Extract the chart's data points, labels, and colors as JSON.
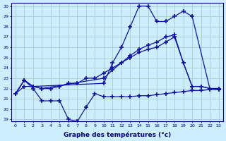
{
  "title": "Graphe des températures (°c)",
  "bg_color": "#cceeff",
  "grid_color": "#aacccc",
  "line_color": "#1111aa",
  "ylim": [
    19,
    30
  ],
  "yticks": [
    19,
    20,
    21,
    22,
    23,
    24,
    25,
    26,
    27,
    28,
    29,
    30
  ],
  "x_labels": [
    "0",
    "1",
    "2",
    "3",
    "4",
    "5",
    "6",
    "7",
    "8",
    "9",
    "10",
    "11",
    "12",
    "13",
    "14",
    "15",
    "16",
    "17",
    "18",
    "19",
    "20",
    "21",
    "22",
    "23"
  ],
  "line1_x": [
    0,
    1,
    2,
    3,
    4,
    5,
    6,
    7,
    8,
    9,
    10,
    11,
    12,
    13,
    14,
    15,
    16,
    17,
    18,
    19,
    20,
    21,
    22,
    23
  ],
  "line1_y": [
    21.5,
    22.8,
    22.0,
    20.8,
    20.8,
    20.8,
    19.0,
    18.8,
    20.2,
    21.5,
    21.2,
    21.2,
    21.2,
    21.2,
    21.3,
    21.3,
    21.4,
    21.5,
    21.6,
    21.7,
    21.8,
    21.8,
    21.9,
    21.9
  ],
  "line2_x": [
    0,
    1,
    2,
    3,
    4,
    5,
    6,
    7,
    8,
    9,
    10,
    11,
    12,
    13,
    14,
    15,
    16,
    17,
    18,
    19,
    20,
    21,
    22,
    23
  ],
  "line2_y": [
    21.5,
    22.2,
    22.2,
    22.0,
    22.0,
    22.2,
    22.5,
    22.5,
    23.0,
    23.0,
    23.5,
    24.0,
    24.5,
    25.0,
    25.5,
    25.8,
    26.0,
    26.5,
    27.0,
    24.5,
    22.2,
    22.2,
    22.0,
    22.0
  ],
  "line3_x": [
    0,
    1,
    2,
    10,
    11,
    12,
    13,
    14,
    15,
    16,
    17,
    18,
    19,
    20,
    22,
    23
  ],
  "line3_y": [
    21.5,
    22.8,
    22.2,
    22.5,
    24.5,
    26.0,
    28.0,
    30.0,
    30.0,
    28.5,
    28.5,
    29.0,
    29.5,
    29.0,
    22.0,
    21.9
  ],
  "line4_x": [
    0,
    1,
    2,
    3,
    10,
    11,
    12,
    13,
    14,
    15,
    16,
    17,
    18,
    19,
    20,
    21,
    22,
    23
  ],
  "line4_y": [
    21.5,
    22.8,
    22.2,
    22.0,
    23.0,
    23.8,
    24.5,
    25.2,
    25.8,
    26.2,
    26.5,
    27.0,
    27.2,
    24.5,
    22.2,
    22.2,
    22.0,
    22.0
  ]
}
